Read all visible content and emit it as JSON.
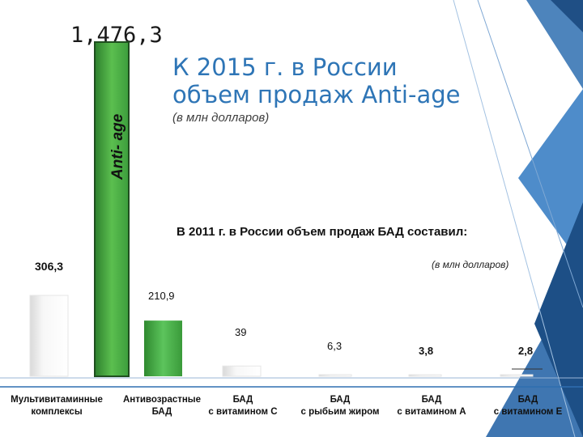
{
  "title": "К 2015 г. в России\nобъем продаж  Anti-age",
  "title_unit": "(в млн долларов)",
  "big_bar": {
    "label": "Anti- age",
    "value": 1476.3,
    "value_label": "1,476,3",
    "color": "#3a9a3a"
  },
  "subtitle": "В 2011 г. в России объем продаж БАД составил:",
  "subtitle_unit": "(в млн долларов)",
  "colors": {
    "accent": "#2e75b6",
    "green": "#4caf50",
    "deco": "#1f5f9e"
  },
  "chart_data": {
    "type": "bar",
    "title": "В 2011 г. в России объем продаж БАД составил:",
    "ylabel": "в млн долларов",
    "categories": [
      "Мультивитаминные комплексы",
      "Антивозрастные БАД",
      "БАД с витамином С",
      "БАД с рыбьим жиром",
      "БАД с витамином А",
      "БАД с витамином Е"
    ],
    "category_labels": [
      "Мультивитаминные\nкомплексы",
      "Антивозрастные\nБАД",
      "БАД\nс витамином С",
      "БАД\nс рыбьим жиром",
      "БАД\nс витамином А",
      "БАД\nс витамином Е"
    ],
    "values": [
      306.3,
      210.9,
      39,
      6.3,
      3.8,
      2.8
    ],
    "value_labels": [
      "306,3",
      "210,9",
      "39",
      "6,3",
      "3,8",
      "2,8"
    ],
    "highlight_index": 1,
    "ylim": [
      0,
      306.3
    ]
  }
}
